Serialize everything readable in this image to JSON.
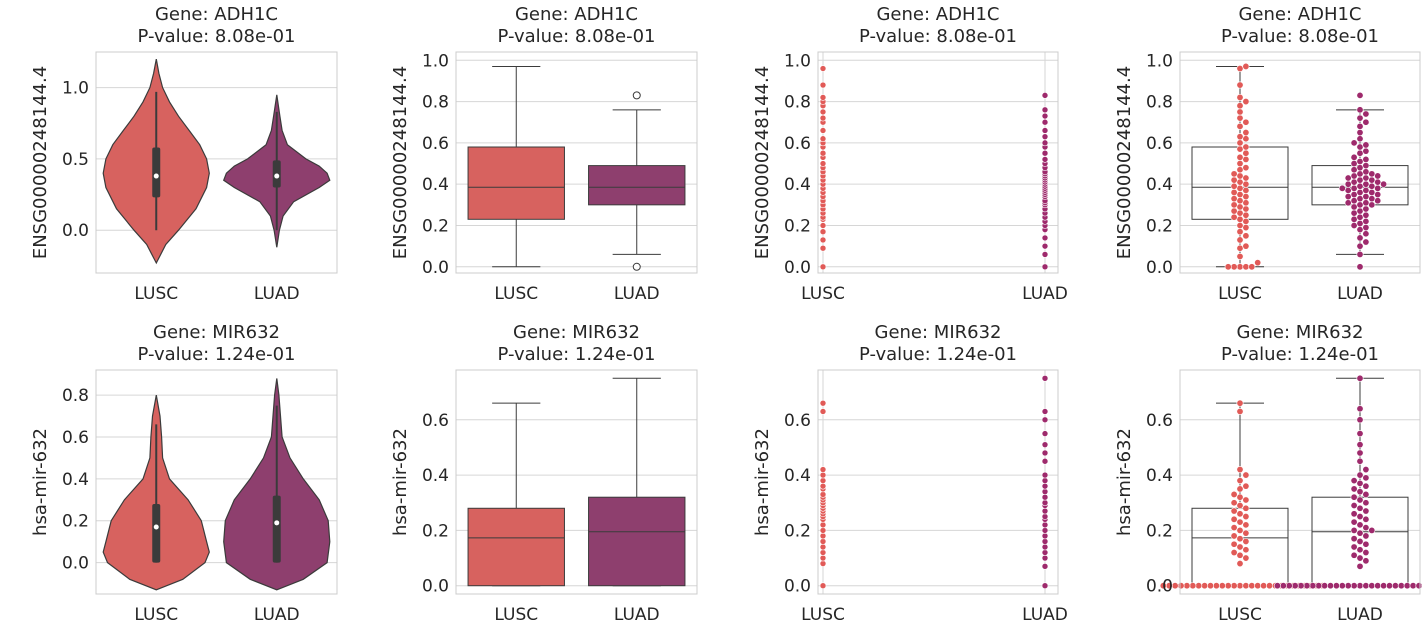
{
  "colors": {
    "lusc": "#d7625f",
    "luad": "#8e3f6e",
    "lusc_dot": "#e15a57",
    "luad_dot": "#9e2a6c",
    "grid": "#d6d6d6",
    "frame": "#cccccc",
    "ink": "#3b3b3b"
  },
  "chart_data": [
    {
      "type": "violin",
      "gene": "Gene: ADH1C",
      "pvalue": "P-value: 8.08e-01",
      "ylabel": "ENSG00000248144.4",
      "categories": [
        "LUSC",
        "LUAD"
      ],
      "ylim": [
        -0.3,
        1.25
      ],
      "yticks": [
        0.0,
        0.5,
        1.0
      ],
      "tick_labels": [
        "0.0",
        "0.5",
        "1.0"
      ],
      "groups": [
        {
          "name": "LUSC",
          "median": 0.38,
          "q1": 0.23,
          "q3": 0.58,
          "min": 0.0,
          "max": 0.97,
          "kde_lo": -0.23,
          "kde_hi": 1.2,
          "profile": [
            [
              -0.23,
              0.0
            ],
            [
              -0.1,
              0.18
            ],
            [
              0.0,
              0.42
            ],
            [
              0.15,
              0.75
            ],
            [
              0.3,
              0.95
            ],
            [
              0.4,
              1.0
            ],
            [
              0.5,
              0.95
            ],
            [
              0.6,
              0.82
            ],
            [
              0.7,
              0.62
            ],
            [
              0.8,
              0.42
            ],
            [
              0.9,
              0.25
            ],
            [
              1.0,
              0.12
            ],
            [
              1.1,
              0.05
            ],
            [
              1.2,
              0.0
            ]
          ]
        },
        {
          "name": "LUAD",
          "median": 0.38,
          "q1": 0.3,
          "q3": 0.49,
          "min": 0.0,
          "max": 0.83,
          "kde_lo": -0.12,
          "kde_hi": 0.95,
          "profile": [
            [
              -0.12,
              0.0
            ],
            [
              0.0,
              0.05
            ],
            [
              0.1,
              0.12
            ],
            [
              0.2,
              0.32
            ],
            [
              0.3,
              0.8
            ],
            [
              0.35,
              1.0
            ],
            [
              0.4,
              0.95
            ],
            [
              0.45,
              0.8
            ],
            [
              0.5,
              0.55
            ],
            [
              0.6,
              0.2
            ],
            [
              0.7,
              0.1
            ],
            [
              0.8,
              0.06
            ],
            [
              0.95,
              0.0
            ]
          ]
        }
      ]
    },
    {
      "type": "box",
      "gene": "Gene: ADH1C",
      "pvalue": "P-value: 8.08e-01",
      "ylabel": "ENSG00000248144.4",
      "categories": [
        "LUSC",
        "LUAD"
      ],
      "ylim": [
        -0.03,
        1.04
      ],
      "yticks": [
        0.0,
        0.2,
        0.4,
        0.6,
        0.8,
        1.0
      ],
      "tick_labels": [
        "0.0",
        "0.2",
        "0.4",
        "0.6",
        "0.8",
        "1.0"
      ],
      "groups": [
        {
          "name": "LUSC",
          "q1": 0.23,
          "median": 0.385,
          "q3": 0.58,
          "whisker_low": 0.0,
          "whisker_high": 0.97,
          "outliers": []
        },
        {
          "name": "LUAD",
          "q1": 0.3,
          "median": 0.385,
          "q3": 0.49,
          "whisker_low": 0.06,
          "whisker_high": 0.76,
          "outliers": [
            0.0,
            0.83
          ]
        }
      ]
    },
    {
      "type": "strip",
      "gene": "Gene: ADH1C",
      "pvalue": "P-value: 8.08e-01",
      "ylabel": "ENSG00000248144.4",
      "categories": [
        "LUSC",
        "LUAD"
      ],
      "ylim": [
        -0.03,
        1.04
      ],
      "yticks": [
        0.0,
        0.2,
        0.4,
        0.6,
        0.8,
        1.0
      ],
      "tick_labels": [
        "0.0",
        "0.2",
        "0.4",
        "0.6",
        "0.8",
        "1.0"
      ],
      "groups": [
        {
          "name": "LUSC",
          "points": [
            0.0,
            0.09,
            0.13,
            0.17,
            0.2,
            0.23,
            0.24,
            0.26,
            0.28,
            0.3,
            0.32,
            0.34,
            0.36,
            0.38,
            0.4,
            0.42,
            0.44,
            0.46,
            0.48,
            0.5,
            0.53,
            0.55,
            0.58,
            0.6,
            0.62,
            0.66,
            0.7,
            0.72,
            0.75,
            0.78,
            0.8,
            0.82,
            0.88,
            0.96
          ]
        },
        {
          "name": "LUAD",
          "points": [
            0.0,
            0.06,
            0.1,
            0.14,
            0.18,
            0.2,
            0.22,
            0.24,
            0.26,
            0.28,
            0.3,
            0.31,
            0.32,
            0.34,
            0.35,
            0.36,
            0.37,
            0.38,
            0.39,
            0.4,
            0.41,
            0.42,
            0.43,
            0.44,
            0.45,
            0.46,
            0.48,
            0.5,
            0.52,
            0.55,
            0.58,
            0.6,
            0.63,
            0.66,
            0.7,
            0.73,
            0.76,
            0.83
          ]
        }
      ]
    },
    {
      "type": "box+swarm",
      "gene": "Gene: ADH1C",
      "pvalue": "P-value: 8.08e-01",
      "ylabel": "ENSG00000248144.4",
      "categories": [
        "LUSC",
        "LUAD"
      ],
      "ylim": [
        -0.03,
        1.04
      ],
      "yticks": [
        0.0,
        0.2,
        0.4,
        0.6,
        0.8,
        1.0
      ],
      "tick_labels": [
        "0.0",
        "0.2",
        "0.4",
        "0.6",
        "0.8",
        "1.0"
      ],
      "groups": [
        {
          "name": "LUSC",
          "q1": 0.23,
          "median": 0.385,
          "q3": 0.58,
          "whisker_low": 0.0,
          "whisker_high": 0.97,
          "points": [
            0.0,
            0.0,
            0.0,
            0.0,
            0.0,
            0.02,
            0.05,
            0.09,
            0.1,
            0.13,
            0.15,
            0.17,
            0.19,
            0.2,
            0.22,
            0.23,
            0.24,
            0.25,
            0.26,
            0.27,
            0.28,
            0.29,
            0.3,
            0.31,
            0.32,
            0.33,
            0.34,
            0.35,
            0.36,
            0.37,
            0.38,
            0.39,
            0.4,
            0.41,
            0.42,
            0.43,
            0.44,
            0.45,
            0.47,
            0.48,
            0.5,
            0.52,
            0.53,
            0.55,
            0.57,
            0.58,
            0.6,
            0.62,
            0.63,
            0.65,
            0.68,
            0.7,
            0.72,
            0.75,
            0.78,
            0.8,
            0.82,
            0.88,
            0.96,
            0.97
          ]
        },
        {
          "name": "LUAD",
          "q1": 0.3,
          "median": 0.385,
          "q3": 0.49,
          "whisker_low": 0.06,
          "whisker_high": 0.76,
          "points": [
            0.0,
            0.06,
            0.1,
            0.12,
            0.14,
            0.16,
            0.18,
            0.19,
            0.2,
            0.21,
            0.22,
            0.23,
            0.24,
            0.25,
            0.26,
            0.27,
            0.28,
            0.29,
            0.3,
            0.3,
            0.31,
            0.31,
            0.32,
            0.32,
            0.33,
            0.33,
            0.34,
            0.34,
            0.35,
            0.35,
            0.36,
            0.36,
            0.37,
            0.37,
            0.38,
            0.38,
            0.38,
            0.39,
            0.39,
            0.4,
            0.4,
            0.4,
            0.41,
            0.41,
            0.42,
            0.42,
            0.43,
            0.43,
            0.44,
            0.44,
            0.45,
            0.45,
            0.46,
            0.47,
            0.48,
            0.49,
            0.5,
            0.51,
            0.52,
            0.53,
            0.55,
            0.56,
            0.58,
            0.59,
            0.6,
            0.62,
            0.65,
            0.68,
            0.7,
            0.72,
            0.74,
            0.76,
            0.83
          ]
        }
      ]
    },
    {
      "type": "violin",
      "gene": "Gene: MIR632",
      "pvalue": "P-value: 1.24e-01",
      "ylabel": "hsa-mir-632",
      "categories": [
        "LUSC",
        "LUAD"
      ],
      "ylim": [
        -0.15,
        0.92
      ],
      "yticks": [
        0.0,
        0.2,
        0.4,
        0.6,
        0.8
      ],
      "tick_labels": [
        "0.0",
        "0.2",
        "0.4",
        "0.6",
        "0.8"
      ],
      "groups": [
        {
          "name": "LUSC",
          "median": 0.17,
          "q1": 0.0,
          "q3": 0.28,
          "min": 0.0,
          "max": 0.66,
          "kde_lo": -0.13,
          "kde_hi": 0.8,
          "profile": [
            [
              -0.13,
              0.0
            ],
            [
              -0.08,
              0.5
            ],
            [
              0.0,
              0.92
            ],
            [
              0.05,
              1.0
            ],
            [
              0.1,
              0.95
            ],
            [
              0.2,
              0.85
            ],
            [
              0.3,
              0.6
            ],
            [
              0.4,
              0.25
            ],
            [
              0.5,
              0.12
            ],
            [
              0.6,
              0.1
            ],
            [
              0.7,
              0.07
            ],
            [
              0.8,
              0.0
            ]
          ]
        },
        {
          "name": "LUAD",
          "median": 0.19,
          "q1": 0.0,
          "q3": 0.32,
          "min": 0.0,
          "max": 0.75,
          "kde_lo": -0.13,
          "kde_hi": 0.88,
          "profile": [
            [
              -0.13,
              0.0
            ],
            [
              -0.08,
              0.5
            ],
            [
              0.0,
              0.95
            ],
            [
              0.1,
              1.0
            ],
            [
              0.2,
              0.97
            ],
            [
              0.3,
              0.8
            ],
            [
              0.4,
              0.5
            ],
            [
              0.5,
              0.25
            ],
            [
              0.6,
              0.1
            ],
            [
              0.7,
              0.07
            ],
            [
              0.8,
              0.04
            ],
            [
              0.88,
              0.0
            ]
          ]
        }
      ]
    },
    {
      "type": "box",
      "gene": "Gene: MIR632",
      "pvalue": "P-value: 1.24e-01",
      "ylabel": "hsa-mir-632",
      "categories": [
        "LUSC",
        "LUAD"
      ],
      "ylim": [
        -0.03,
        0.78
      ],
      "yticks": [
        0.0,
        0.2,
        0.4,
        0.6
      ],
      "tick_labels": [
        "0.0",
        "0.2",
        "0.4",
        "0.6"
      ],
      "groups": [
        {
          "name": "LUSC",
          "q1": 0.0,
          "median": 0.173,
          "q3": 0.28,
          "whisker_low": 0.0,
          "whisker_high": 0.66,
          "outliers": []
        },
        {
          "name": "LUAD",
          "q1": 0.0,
          "median": 0.195,
          "q3": 0.32,
          "whisker_low": 0.0,
          "whisker_high": 0.75,
          "outliers": []
        }
      ]
    },
    {
      "type": "strip",
      "gene": "Gene: MIR632",
      "pvalue": "P-value: 1.24e-01",
      "ylabel": "hsa-mir-632",
      "categories": [
        "LUSC",
        "LUAD"
      ],
      "ylim": [
        -0.03,
        0.78
      ],
      "yticks": [
        0.0,
        0.2,
        0.4,
        0.6
      ],
      "tick_labels": [
        "0.0",
        "0.2",
        "0.4",
        "0.6"
      ],
      "groups": [
        {
          "name": "LUSC",
          "points": [
            0.0,
            0.08,
            0.1,
            0.12,
            0.14,
            0.16,
            0.18,
            0.2,
            0.22,
            0.24,
            0.25,
            0.26,
            0.27,
            0.28,
            0.29,
            0.3,
            0.31,
            0.32,
            0.33,
            0.35,
            0.36,
            0.38,
            0.4,
            0.42,
            0.63,
            0.66
          ]
        },
        {
          "name": "LUAD",
          "points": [
            0.0,
            0.07,
            0.1,
            0.12,
            0.14,
            0.16,
            0.18,
            0.2,
            0.22,
            0.24,
            0.25,
            0.27,
            0.29,
            0.3,
            0.32,
            0.34,
            0.36,
            0.38,
            0.4,
            0.45,
            0.48,
            0.51,
            0.55,
            0.6,
            0.63,
            0.75
          ]
        }
      ]
    },
    {
      "type": "box+swarm",
      "gene": "Gene: MIR632",
      "pvalue": "P-value: 1.24e-01",
      "ylabel": "hsa-mir-632",
      "categories": [
        "LUSC",
        "LUAD"
      ],
      "ylim": [
        -0.03,
        0.78
      ],
      "yticks": [
        0.0,
        0.2,
        0.4,
        0.6
      ],
      "tick_labels": [
        "0.0",
        "0.2",
        "0.4",
        "0.6"
      ],
      "groups": [
        {
          "name": "LUSC",
          "q1": 0.0,
          "median": 0.173,
          "q3": 0.28,
          "whisker_low": 0.0,
          "whisker_high": 0.66,
          "zero_count": 28,
          "points": [
            0.08,
            0.1,
            0.11,
            0.12,
            0.13,
            0.14,
            0.15,
            0.16,
            0.17,
            0.18,
            0.19,
            0.2,
            0.21,
            0.22,
            0.23,
            0.24,
            0.25,
            0.26,
            0.27,
            0.28,
            0.29,
            0.3,
            0.31,
            0.32,
            0.33,
            0.35,
            0.36,
            0.38,
            0.4,
            0.42,
            0.63,
            0.66
          ]
        },
        {
          "name": "LUAD",
          "q1": 0.0,
          "median": 0.195,
          "q3": 0.32,
          "whisker_low": 0.0,
          "whisker_high": 0.75,
          "zero_count": 30,
          "points": [
            0.07,
            0.09,
            0.1,
            0.11,
            0.12,
            0.13,
            0.14,
            0.15,
            0.16,
            0.17,
            0.18,
            0.19,
            0.2,
            0.2,
            0.21,
            0.22,
            0.23,
            0.24,
            0.25,
            0.26,
            0.27,
            0.28,
            0.29,
            0.3,
            0.31,
            0.32,
            0.33,
            0.34,
            0.35,
            0.36,
            0.37,
            0.38,
            0.39,
            0.4,
            0.42,
            0.45,
            0.48,
            0.51,
            0.55,
            0.6,
            0.64,
            0.75
          ]
        }
      ]
    }
  ]
}
